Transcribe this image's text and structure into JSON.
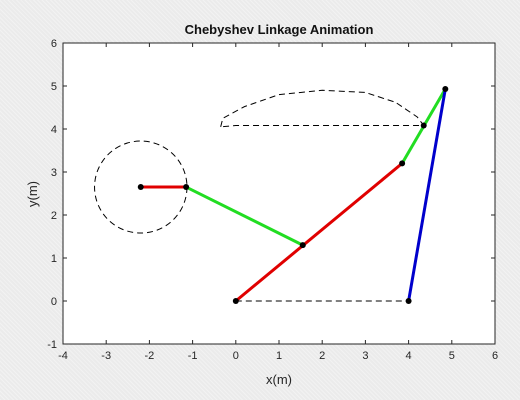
{
  "chart_data": {
    "type": "line",
    "title": "Chebyshev Linkage Animation",
    "xlabel": "x(m)",
    "ylabel": "y(m)",
    "xlim": [
      -4,
      6
    ],
    "ylim": [
      -1,
      6
    ],
    "xticks": [
      -4,
      -3,
      -2,
      -1,
      0,
      1,
      2,
      3,
      4,
      5,
      6
    ],
    "yticks": [
      -1,
      0,
      1,
      2,
      3,
      4,
      5,
      6
    ],
    "xtick_labels": [
      "-4",
      "-3",
      "-2",
      "-1",
      "0",
      "1",
      "2",
      "3",
      "4",
      "5",
      "6"
    ],
    "ytick_labels": [
      "-1",
      "0",
      "1",
      "2",
      "3",
      "4",
      "5",
      "6"
    ],
    "grid": false,
    "links": [
      {
        "id": "crank",
        "color": "#e00000",
        "points": [
          [
            -2.2,
            2.65
          ],
          [
            -1.15,
            2.65
          ]
        ]
      },
      {
        "id": "coupler",
        "color": "#22dd22",
        "points": [
          [
            -1.15,
            2.65
          ],
          [
            1.55,
            1.3
          ]
        ]
      },
      {
        "id": "rocker-left",
        "color": "#e00000",
        "points": [
          [
            0,
            0
          ],
          [
            3.85,
            3.2
          ]
        ]
      },
      {
        "id": "upper-link",
        "color": "#22dd22",
        "points": [
          [
            3.85,
            3.2
          ],
          [
            4.85,
            4.93
          ]
        ]
      },
      {
        "id": "rocker-right",
        "color": "#0000cc",
        "points": [
          [
            4.0,
            0
          ],
          [
            4.85,
            4.93
          ]
        ]
      }
    ],
    "joints": [
      [
        -2.2,
        2.65
      ],
      [
        -1.15,
        2.65
      ],
      [
        1.55,
        1.3
      ],
      [
        0,
        0
      ],
      [
        4.0,
        0
      ],
      [
        3.85,
        3.2
      ],
      [
        4.35,
        4.08
      ],
      [
        4.85,
        4.93
      ]
    ],
    "crank_circle": {
      "center": [
        -2.2,
        2.65
      ],
      "radius": 1.07
    },
    "ground_line": [
      [
        0,
        0
      ],
      [
        4.0,
        0
      ]
    ],
    "coupler_path": [
      [
        -0.35,
        4.05
      ],
      [
        -0.3,
        4.25
      ],
      [
        0.2,
        4.52
      ],
      [
        1.0,
        4.8
      ],
      [
        2.0,
        4.9
      ],
      [
        3.0,
        4.85
      ],
      [
        3.7,
        4.62
      ],
      [
        4.2,
        4.28
      ],
      [
        4.35,
        4.08
      ],
      [
        3.0,
        4.08
      ],
      [
        1.5,
        4.08
      ],
      [
        0.0,
        4.08
      ],
      [
        -0.35,
        4.05
      ]
    ]
  }
}
